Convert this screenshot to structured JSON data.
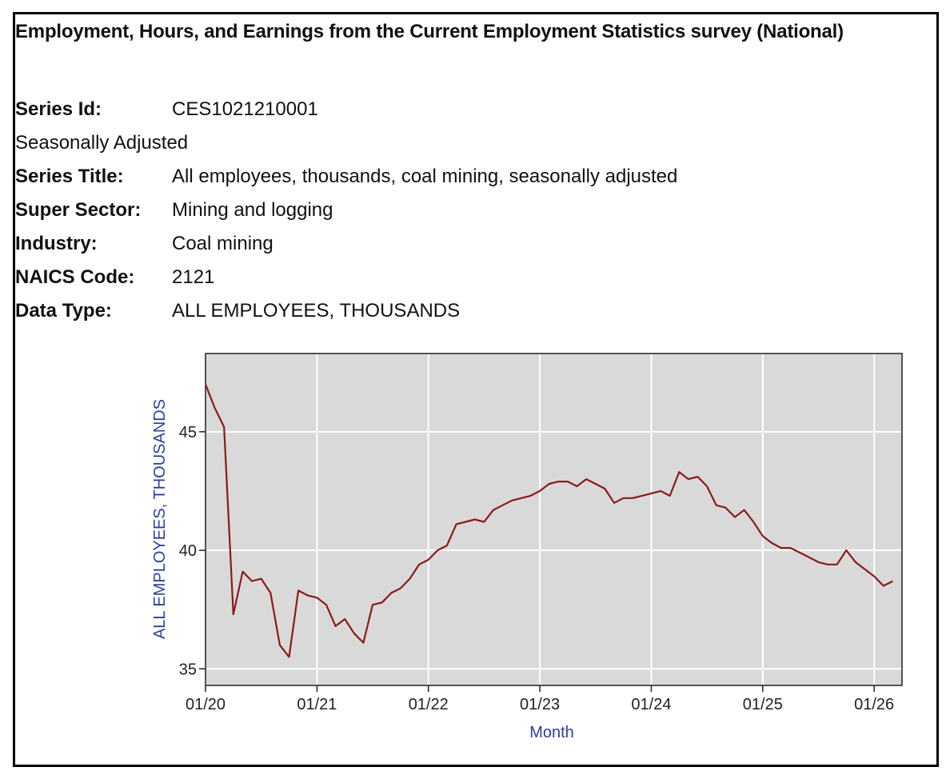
{
  "heading": "Employment, Hours, and Earnings from the Current Employment Statistics survey (National)",
  "meta": {
    "series_id_label": "Series Id:",
    "series_id": "CES1021210001",
    "seasonal": "Seasonally Adjusted",
    "series_title_label": "Series Title:",
    "series_title": "All employees, thousands, coal mining, seasonally adjusted",
    "super_sector_label": "Super Sector:",
    "super_sector": "Mining and logging",
    "industry_label": "Industry:",
    "industry": "Coal mining",
    "naics_label": "NAICS Code:",
    "naics": "2121",
    "data_type_label": "Data Type:",
    "data_type": "ALL EMPLOYEES, THOUSANDS"
  },
  "colors": {
    "plot_bg": "#d9d9d9",
    "grid": "#ffffff",
    "line": "#8b1a1a",
    "axis_label": "#2a3fa0"
  },
  "chart_data": {
    "type": "line",
    "xlabel": "Month",
    "ylabel": "ALL EMPLOYEES, THOUSANDS",
    "grid": true,
    "xlim": [
      0,
      75
    ],
    "ylim": [
      34.3,
      48.3
    ],
    "x_ticks": [
      {
        "value": 0,
        "label": "01/20"
      },
      {
        "value": 12,
        "label": "01/21"
      },
      {
        "value": 24,
        "label": "01/22"
      },
      {
        "value": 36,
        "label": "01/23"
      },
      {
        "value": 48,
        "label": "01/24"
      },
      {
        "value": 60,
        "label": "01/25"
      },
      {
        "value": 72,
        "label": "01/26"
      }
    ],
    "y_ticks": [
      {
        "value": 35,
        "label": "35"
      },
      {
        "value": 40,
        "label": "40"
      },
      {
        "value": 45,
        "label": "45"
      }
    ],
    "series": [
      {
        "dates": [
          "2020-01",
          "2020-02",
          "2020-03",
          "2020-04",
          "2020-05",
          "2020-06",
          "2020-07",
          "2020-08",
          "2020-09",
          "2020-10",
          "2020-11",
          "2020-12",
          "2021-01",
          "2021-02",
          "2021-03",
          "2021-04",
          "2021-05",
          "2021-06",
          "2021-07",
          "2021-08",
          "2021-09",
          "2021-10",
          "2021-11",
          "2021-12",
          "2022-01",
          "2022-02",
          "2022-03",
          "2022-04",
          "2022-05",
          "2022-06",
          "2022-07",
          "2022-08",
          "2022-09",
          "2022-10",
          "2022-11",
          "2022-12",
          "2023-01",
          "2023-02",
          "2023-03",
          "2023-04",
          "2023-05",
          "2023-06",
          "2023-07",
          "2023-08",
          "2023-09",
          "2023-10",
          "2023-11",
          "2023-12",
          "2024-01",
          "2024-02",
          "2024-03",
          "2024-04",
          "2024-05",
          "2024-06",
          "2024-07",
          "2024-08",
          "2024-09",
          "2024-10",
          "2024-11",
          "2024-12",
          "2025-01",
          "2025-02",
          "2025-03",
          "2025-04",
          "2025-05",
          "2025-06",
          "2025-07",
          "2025-08",
          "2025-09",
          "2025-10",
          "2025-11",
          "2025-12",
          "2026-01",
          "2026-02",
          "2026-03"
        ],
        "values": [
          47.0,
          46.0,
          45.2,
          37.3,
          39.1,
          38.7,
          38.8,
          38.2,
          36.0,
          35.5,
          38.3,
          38.1,
          38.0,
          37.7,
          36.8,
          37.1,
          36.5,
          36.1,
          37.7,
          37.8,
          38.2,
          38.4,
          38.8,
          39.4,
          39.6,
          40.0,
          40.2,
          41.1,
          41.2,
          41.3,
          41.2,
          41.7,
          41.9,
          42.1,
          42.2,
          42.3,
          42.5,
          42.8,
          42.9,
          42.9,
          42.7,
          43.0,
          42.8,
          42.6,
          42.0,
          42.2,
          42.2,
          42.3,
          42.4,
          42.5,
          42.3,
          43.3,
          43.0,
          43.1,
          42.7,
          41.9,
          41.8,
          41.4,
          41.7,
          41.2,
          40.6,
          40.3,
          40.1,
          40.1,
          39.9,
          39.7,
          39.5,
          39.4,
          39.4,
          40.0,
          39.5,
          39.2,
          38.9,
          38.5,
          38.7
        ]
      }
    ]
  }
}
